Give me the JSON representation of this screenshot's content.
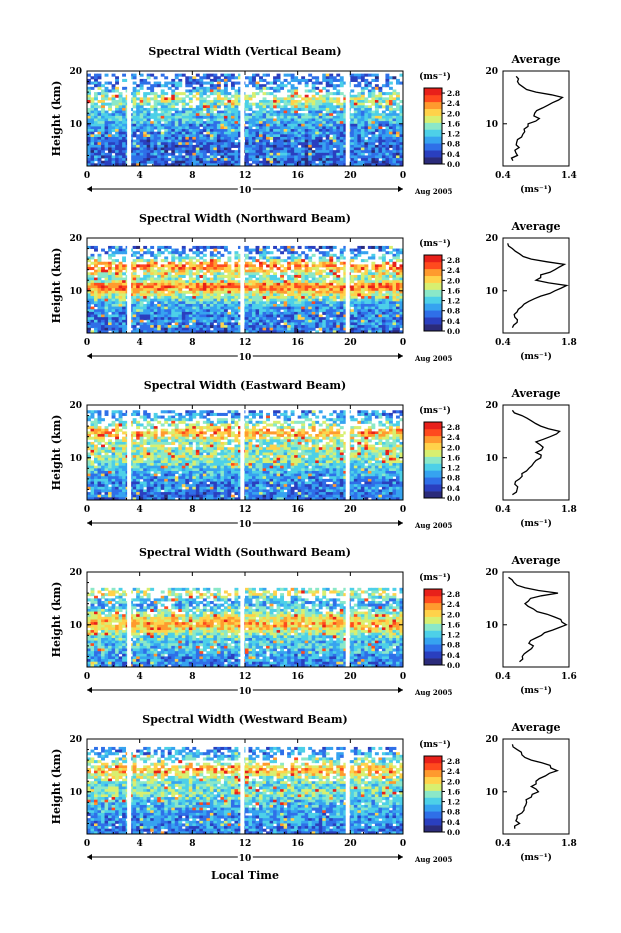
{
  "figure": {
    "xlabel": "Local Time",
    "date_label": "Aug 2005",
    "day_label": "10",
    "ylabel": "Height (km)",
    "unit_label": "(ms⁻¹)",
    "avg_title": "Average"
  },
  "colors": {
    "scale": [
      "#2b2b7a",
      "#2a3fbf",
      "#2f6fe8",
      "#36a3f0",
      "#4dd0e8",
      "#8be8c8",
      "#d8ef70",
      "#ffd24a",
      "#ff9a2e",
      "#ff4a1e",
      "#e8201a"
    ],
    "avg_line": "#000000",
    "gap": "#ffffff"
  },
  "chart_data": [
    {
      "type": "heatmap",
      "title": "Spectral Width (Vertical Beam)",
      "x_ticks": [
        "0",
        "4",
        "8",
        "12",
        "16",
        "20",
        "0"
      ],
      "xlim": [
        0,
        24
      ],
      "y_ticks": [
        "20",
        "10"
      ],
      "ylim": [
        2,
        20
      ],
      "colorbar_ticks": [
        "2.8",
        "2.4",
        "2.0",
        "1.6",
        "1.2",
        "0.8",
        "0.4",
        "0.0"
      ],
      "clim": [
        0,
        3.0
      ],
      "data_gaps_hours": [
        3.2,
        11.8,
        19.8
      ],
      "coverage_top_km": 19.5,
      "profile": {
        "xlim": [
          0.4,
          1.4
        ],
        "x_ticks": [
          "0.4",
          "1.4"
        ],
        "y_ticks": [
          "20",
          "10"
        ],
        "height_km": [
          3,
          4,
          5,
          6,
          7,
          8,
          9,
          10,
          11,
          12,
          13,
          14,
          15,
          16,
          17,
          18,
          19
        ],
        "width_ms": [
          0.55,
          0.62,
          0.58,
          0.6,
          0.62,
          0.7,
          0.72,
          0.78,
          0.95,
          0.88,
          1.0,
          1.15,
          1.3,
          0.9,
          0.7,
          0.62,
          0.6
        ]
      }
    },
    {
      "type": "heatmap",
      "title": "Spectral Width (Northward Beam)",
      "x_ticks": [
        "0",
        "4",
        "8",
        "12",
        "16",
        "20",
        "0"
      ],
      "xlim": [
        0,
        24
      ],
      "y_ticks": [
        "20",
        "10"
      ],
      "ylim": [
        2,
        20
      ],
      "colorbar_ticks": [
        "2.8",
        "2.4",
        "2.0",
        "1.6",
        "1.2",
        "0.8",
        "0.4",
        "0.0"
      ],
      "clim": [
        0,
        3.0
      ],
      "data_gaps_hours": [
        3.2,
        11.8,
        19.8
      ],
      "coverage_top_km": 18.5,
      "profile": {
        "xlim": [
          0.4,
          1.8
        ],
        "x_ticks": [
          "0.4",
          "1.8"
        ],
        "y_ticks": [
          "20",
          "10"
        ],
        "height_km": [
          3,
          4,
          5,
          6,
          7,
          8,
          9,
          10,
          11,
          12,
          13,
          14,
          15,
          16,
          17,
          18,
          19
        ],
        "width_ms": [
          0.6,
          0.7,
          0.65,
          0.7,
          0.8,
          0.95,
          1.2,
          1.5,
          1.75,
          1.1,
          1.2,
          1.5,
          1.7,
          1.0,
          0.75,
          0.6,
          0.5
        ]
      }
    },
    {
      "type": "heatmap",
      "title": "Spectral Width (Eastward Beam)",
      "x_ticks": [
        "0",
        "4",
        "8",
        "12",
        "16",
        "20",
        "0"
      ],
      "xlim": [
        0,
        24
      ],
      "y_ticks": [
        "20",
        "10"
      ],
      "ylim": [
        2,
        20
      ],
      "colorbar_ticks": [
        "2.8",
        "2.4",
        "2.0",
        "1.6",
        "1.2",
        "0.8",
        "0.4",
        "0.0"
      ],
      "clim": [
        0,
        3.0
      ],
      "data_gaps_hours": [
        3.2,
        11.8,
        19.8
      ],
      "coverage_top_km": 19.0,
      "profile": {
        "xlim": [
          0.4,
          1.8
        ],
        "x_ticks": [
          "0.4",
          "1.8"
        ],
        "y_ticks": [
          "20",
          "10"
        ],
        "height_km": [
          3,
          4,
          5,
          6,
          7,
          8,
          9,
          10,
          11,
          12,
          13,
          14,
          15,
          16,
          17,
          18,
          19
        ],
        "width_ms": [
          0.6,
          0.7,
          0.65,
          0.75,
          0.8,
          0.95,
          1.05,
          1.2,
          1.1,
          1.25,
          1.1,
          1.4,
          1.6,
          1.2,
          1.0,
          0.8,
          0.6
        ]
      }
    },
    {
      "type": "heatmap",
      "title": "Spectral Width (Southward Beam)",
      "x_ticks": [
        "0",
        "4",
        "8",
        "12",
        "16",
        "20",
        "0"
      ],
      "xlim": [
        0,
        24
      ],
      "y_ticks": [
        "20",
        "10"
      ],
      "ylim": [
        2,
        20
      ],
      "colorbar_ticks": [
        "2.8",
        "2.4",
        "2.0",
        "1.6",
        "1.2",
        "0.8",
        "0.4",
        "0.0"
      ],
      "clim": [
        0,
        3.0
      ],
      "data_gaps_hours": [
        3.2,
        11.8,
        19.8
      ],
      "coverage_top_km": 17.0,
      "profile": {
        "xlim": [
          0.4,
          1.6
        ],
        "x_ticks": [
          "0.4",
          "1.6"
        ],
        "y_ticks": [
          "20",
          "10"
        ],
        "height_km": [
          3,
          4,
          5,
          6,
          7,
          8,
          9,
          10,
          11,
          12,
          13,
          14,
          15,
          16,
          17,
          18,
          19
        ],
        "width_ms": [
          0.7,
          0.75,
          0.85,
          0.95,
          0.9,
          1.1,
          1.3,
          1.55,
          1.45,
          1.2,
          0.95,
          0.8,
          0.9,
          1.4,
          0.8,
          0.6,
          0.5
        ]
      }
    },
    {
      "type": "heatmap",
      "title": "Spectral Width (Westward Beam)",
      "x_ticks": [
        "0",
        "4",
        "8",
        "12",
        "16",
        "20",
        "0"
      ],
      "xlim": [
        0,
        24
      ],
      "y_ticks": [
        "20",
        "10"
      ],
      "ylim": [
        2,
        20
      ],
      "colorbar_ticks": [
        "2.8",
        "2.4",
        "2.0",
        "1.6",
        "1.2",
        "0.8",
        "0.4",
        "0.0"
      ],
      "clim": [
        0,
        3.0
      ],
      "data_gaps_hours": [
        3.2,
        11.8,
        19.8
      ],
      "coverage_top_km": 18.5,
      "profile": {
        "xlim": [
          0.4,
          1.8
        ],
        "x_ticks": [
          "0.4",
          "1.8"
        ],
        "y_ticks": [
          "20",
          "10"
        ],
        "height_km": [
          3,
          4,
          5,
          6,
          7,
          8,
          9,
          10,
          11,
          12,
          13,
          14,
          15,
          16,
          17,
          18,
          19
        ],
        "width_ms": [
          0.65,
          0.75,
          0.7,
          0.8,
          0.85,
          0.9,
          1.0,
          1.15,
          1.0,
          1.1,
          1.3,
          1.55,
          1.4,
          1.0,
          0.8,
          0.7,
          0.6
        ]
      }
    }
  ]
}
